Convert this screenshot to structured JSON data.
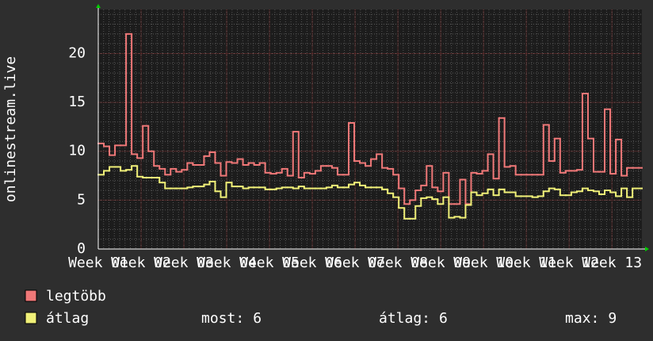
{
  "chart_data": {
    "type": "step",
    "y_label": "onlinestream.live",
    "x": [
      1,
      1.13,
      1.26,
      1.39,
      1.52,
      1.65,
      1.78,
      1.91,
      2.04,
      2.17,
      2.3,
      2.43,
      2.56,
      2.69,
      2.82,
      2.95,
      3.08,
      3.21,
      3.34,
      3.47,
      3.6,
      3.73,
      3.86,
      3.99,
      4.12,
      4.25,
      4.38,
      4.51,
      4.64,
      4.77,
      4.9,
      5.03,
      5.16,
      5.29,
      5.42,
      5.55,
      5.68,
      5.81,
      5.94,
      6.07,
      6.2,
      6.33,
      6.46,
      6.59,
      6.72,
      6.85,
      6.98,
      7.11,
      7.24,
      7.37,
      7.5,
      7.63,
      7.76,
      7.89,
      8.02,
      8.15,
      8.28,
      8.41,
      8.54,
      8.67,
      8.8,
      8.93,
      9.06,
      9.19,
      9.32,
      9.45,
      9.58,
      9.71,
      9.84,
      9.97,
      10.1,
      10.23,
      10.36,
      10.49,
      10.62,
      10.75,
      10.88,
      11.01,
      11.14,
      11.27,
      11.4,
      11.53,
      11.66,
      11.79,
      11.92,
      12.05,
      12.18,
      12.31,
      12.44,
      12.57,
      12.7,
      12.83,
      12.96,
      13.09,
      13.22,
      13.35,
      13.48
    ],
    "series": [
      {
        "name": "legtöbb",
        "color": "#f07878",
        "values": [
          10.8,
          10.5,
          9.6,
          10.6,
          10.6,
          22,
          9.7,
          9.3,
          12.6,
          10,
          8.5,
          8.2,
          7.6,
          8.2,
          7.9,
          8.1,
          8.8,
          8.6,
          8.6,
          9.5,
          9.9,
          8.8,
          7.5,
          8.9,
          8.8,
          9.2,
          8.6,
          8.8,
          8.6,
          8.8,
          7.8,
          7.7,
          7.8,
          8.2,
          7.5,
          12,
          7.3,
          7.8,
          7.7,
          8.0,
          8.5,
          8.5,
          8.3,
          7.6,
          7.6,
          12.9,
          9.0,
          8.8,
          8.5,
          9.2,
          9.7,
          8.3,
          8.2,
          7.6,
          6.2,
          4.6,
          5.0,
          6.0,
          6.5,
          8.5,
          6.3,
          5.9,
          7.8,
          4.6,
          4.6,
          7.1,
          4.6,
          7.8,
          7.7,
          8.0,
          9.7,
          7.2,
          13.4,
          8.4,
          8.5,
          7.6,
          7.6,
          7.6,
          7.6,
          7.6,
          12.7,
          9.0,
          11.3,
          7.8,
          8.0,
          8.0,
          8.1,
          15.9,
          11.3,
          7.9,
          7.9,
          14.3,
          7.7,
          11.2,
          7.5,
          8.3,
          8.3
        ]
      },
      {
        "name": "átlag",
        "color": "#f0f078",
        "values": [
          7.6,
          8.0,
          8.4,
          8.4,
          8.0,
          8.1,
          8.5,
          7.4,
          7.3,
          7.3,
          7.3,
          6.8,
          6.2,
          6.2,
          6.2,
          6.2,
          6.3,
          6.4,
          6.4,
          6.6,
          6.9,
          5.9,
          5.3,
          6.8,
          6.4,
          6.4,
          6.2,
          6.3,
          6.3,
          6.3,
          6.1,
          6.1,
          6.2,
          6.3,
          6.3,
          6.2,
          6.4,
          6.2,
          6.2,
          6.2,
          6.2,
          6.3,
          6.5,
          6.3,
          6.3,
          6.6,
          6.8,
          6.5,
          6.3,
          6.3,
          6.3,
          6.1,
          5.7,
          5.3,
          4.2,
          3.1,
          3.1,
          4.4,
          5.2,
          5.3,
          5.1,
          4.6,
          5.3,
          3.2,
          3.3,
          3.2,
          4.5,
          5.8,
          5.5,
          5.7,
          6.1,
          5.5,
          6.1,
          5.8,
          5.8,
          5.4,
          5.4,
          5.4,
          5.3,
          5.4,
          5.9,
          6.2,
          6.1,
          5.5,
          5.5,
          5.8,
          5.9,
          6.2,
          6.0,
          5.9,
          5.6,
          6.0,
          5.8,
          5.4,
          6.2,
          5.3,
          6.2
        ]
      }
    ],
    "xlim": [
      1,
      13.7
    ],
    "xticks": [
      {
        "value": 1,
        "label": "Week 01"
      },
      {
        "value": 2,
        "label": "Week 02"
      },
      {
        "value": 3,
        "label": "Week 03"
      },
      {
        "value": 4,
        "label": "Week 04"
      },
      {
        "value": 5,
        "label": "Week 05"
      },
      {
        "value": 6,
        "label": "Week 06"
      },
      {
        "value": 7,
        "label": "Week 07"
      },
      {
        "value": 8,
        "label": "Week 08"
      },
      {
        "value": 9,
        "label": "Week 09"
      },
      {
        "value": 10,
        "label": "Week 10"
      },
      {
        "value": 11,
        "label": "Week 11"
      },
      {
        "value": 12,
        "label": "Week 12"
      },
      {
        "value": 13,
        "label": "Week 13"
      }
    ],
    "ylim": [
      0,
      24.5
    ],
    "yticks": [
      0,
      5,
      10,
      15,
      20
    ],
    "grid": true,
    "stats": [
      {
        "label": "most:",
        "value": 6
      },
      {
        "label": "átlag:",
        "value": 6
      },
      {
        "label": "max:",
        "value": 9
      }
    ]
  }
}
